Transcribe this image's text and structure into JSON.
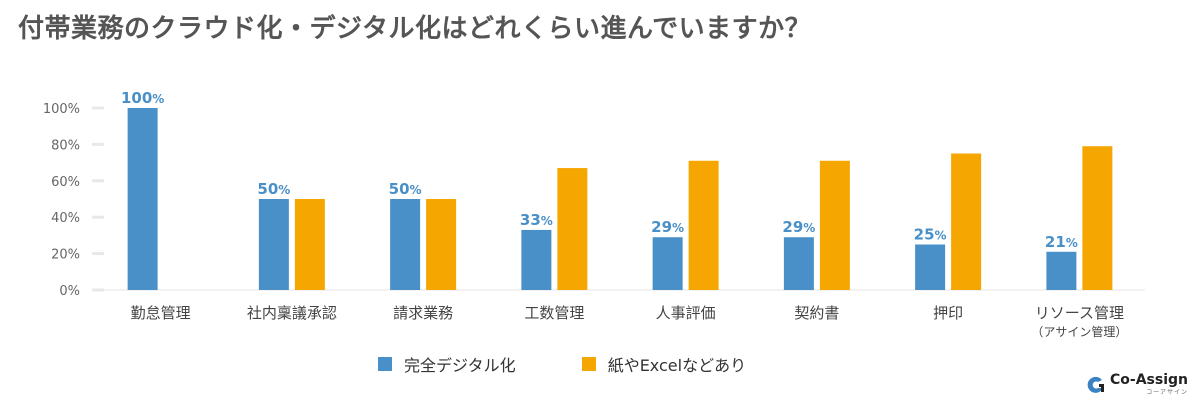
{
  "header": {
    "title": "付帯業務のクラウド化・デジタル化はどれくらい進んでいますか？"
  },
  "chart_data": {
    "type": "bar",
    "categories": [
      "勤怠管理",
      "社内稟議承認",
      "請求業務",
      "工数管理",
      "人事評価",
      "契約書",
      "押印",
      "リソース管理"
    ],
    "category_sublabels": [
      "",
      "",
      "",
      "",
      "",
      "",
      "",
      "（アサイン管理）"
    ],
    "series": [
      {
        "name": "完全デジタル化",
        "color": "#4a90c8",
        "values": [
          100,
          50,
          50,
          33,
          29,
          29,
          25,
          21
        ]
      },
      {
        "name": "紙やExcelなどあり",
        "color": "#f6a600",
        "values": [
          0,
          50,
          50,
          67,
          71,
          71,
          75,
          79
        ]
      }
    ],
    "data_labels": [
      "100%",
      "50%",
      "50%",
      "33%",
      "29%",
      "29%",
      "25%",
      "21%"
    ],
    "ylim": [
      0,
      100
    ],
    "yticks": [
      "0%",
      "20%",
      "40%",
      "60%",
      "80%",
      "100%"
    ],
    "ytick_values": [
      0,
      20,
      40,
      60,
      80,
      100
    ],
    "legend_position": "bottom",
    "grid": false
  },
  "legend": {
    "items": [
      {
        "label": "完全デジタル化",
        "color": "#4a90c8"
      },
      {
        "label": "紙やExcelなどあり",
        "color": "#f6a600"
      }
    ]
  },
  "logo": {
    "name": "Co-Assign",
    "sub": "コーアサイン"
  }
}
